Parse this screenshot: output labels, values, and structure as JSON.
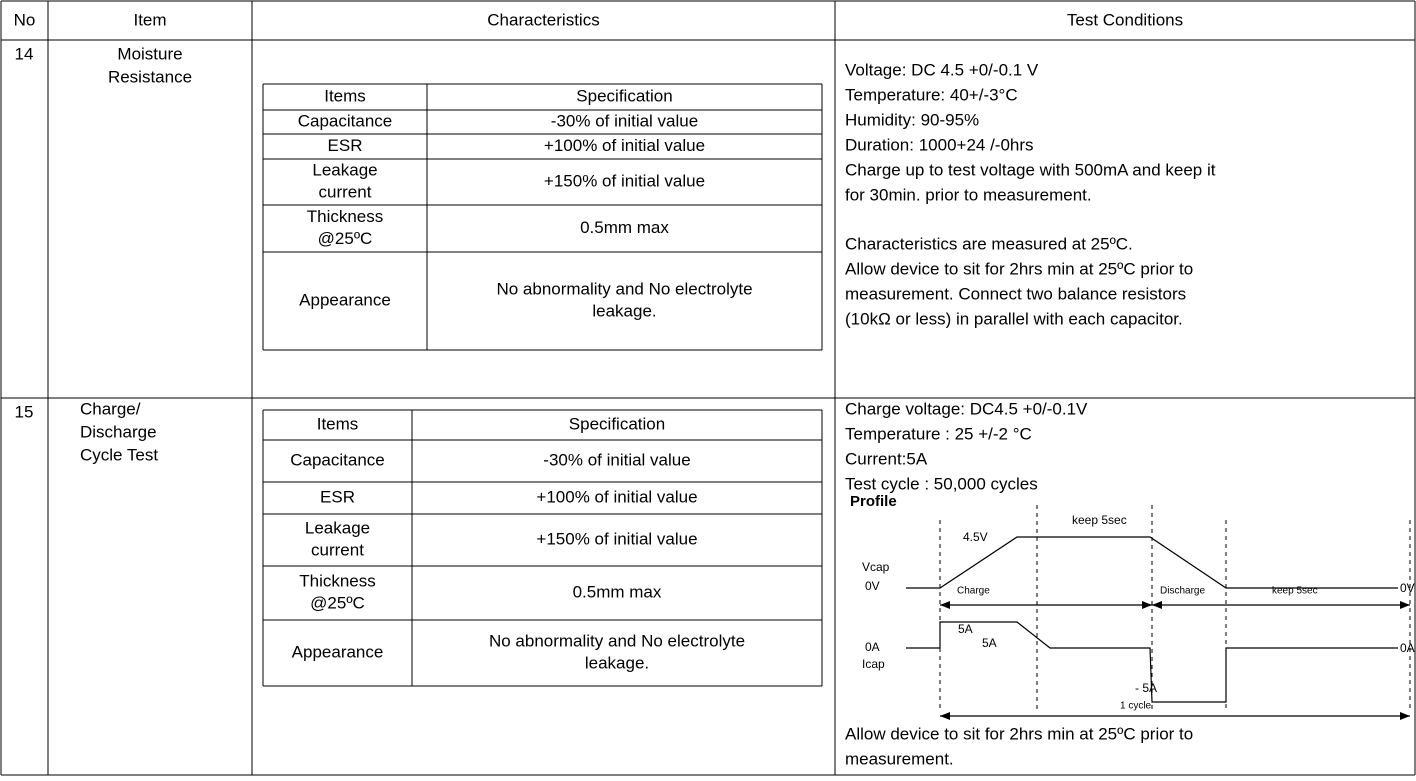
{
  "table": {
    "header": [
      "No",
      "Item",
      "Characteristics",
      "Test Conditions"
    ],
    "rows": [
      {
        "no": "14",
        "item": [
          "Moisture",
          "Resistance"
        ],
        "spec_table": {
          "header": [
            "Items",
            "Specification"
          ],
          "rows": [
            [
              [
                "Capacitance"
              ],
              [
                "-30% of initial value"
              ]
            ],
            [
              [
                "ESR"
              ],
              [
                "+100% of initial value"
              ]
            ],
            [
              [
                "Leakage",
                "current"
              ],
              [
                "+150% of initial value"
              ]
            ],
            [
              [
                "Thickness",
                "@25ºC"
              ],
              [
                "0.5mm max"
              ]
            ],
            [
              [
                "Appearance"
              ],
              [
                "No abnormality and No electrolyte",
                "leakage."
              ]
            ]
          ]
        },
        "conditions": [
          [
            "Voltage: DC 4.5 +0/-0.1 V",
            "Temperature: 40+/-3°C",
            "Humidity: 90-95%",
            "Duration: 1000+24 /-0hrs",
            "Charge up to test voltage with 500mA and keep it",
            "for 30min. prior to measurement."
          ],
          [
            "Characteristics are measured at 25ºC.",
            "Allow device to sit for 2hrs min at 25ºC prior to",
            "measurement. Connect two balance resistors",
            "(10kΩ or less) in parallel with each capacitor."
          ]
        ]
      },
      {
        "no": "15",
        "item": [
          "Charge/",
          "Discharge",
          "Cycle Test"
        ],
        "spec_table": {
          "header": [
            "Items",
            "Specification"
          ],
          "rows": [
            [
              [
                "Capacitance"
              ],
              [
                "-30% of initial value"
              ]
            ],
            [
              [
                "ESR"
              ],
              [
                "+100% of initial value"
              ]
            ],
            [
              [
                "Leakage",
                "current"
              ],
              [
                "+150% of initial value"
              ]
            ],
            [
              [
                "Thickness",
                "@25ºC"
              ],
              [
                "0.5mm max"
              ]
            ],
            [
              [
                "Appearance"
              ],
              [
                "No abnormality and No electrolyte",
                "leakage."
              ]
            ]
          ]
        },
        "conditions": [
          [
            "Charge voltage: DC4.5 +0/-0.1V",
            "Temperature : 25 +/-2  °C",
            "Current:5A",
            "Test cycle : 50,000 cycles"
          ],
          [
            "Allow device to sit for 2hrs min at 25ºC prior to",
            "measurement."
          ]
        ],
        "profile": {
          "title": "Profile",
          "labels": [
            "4.5V",
            "keep  5sec",
            "Vcap",
            "0V",
            "Charge",
            "Discharge",
            "keep  5sec",
            "0V",
            "5A",
            "5A",
            "0A",
            "Icap",
            "- 5A",
            "0A",
            "1 cycle"
          ]
        }
      }
    ]
  }
}
